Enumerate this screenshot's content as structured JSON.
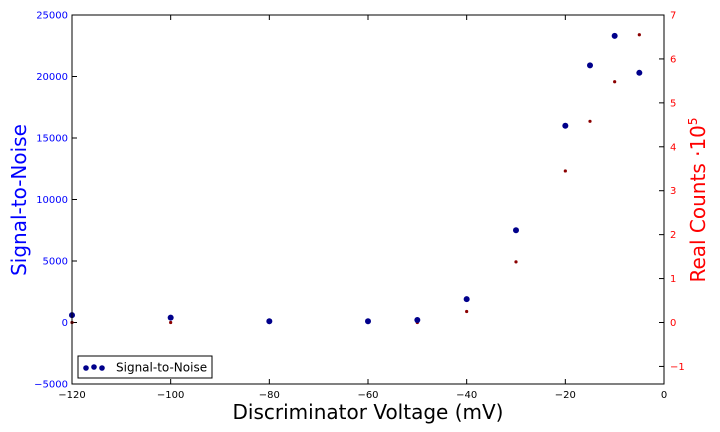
{
  "chart_data": {
    "type": "scatter",
    "xlabel": "Discriminator Voltage (mV)",
    "ylabel": "Signal-to-Noise",
    "y2label_main": "Real Counts ",
    "y2label_base": "10",
    "y2label_exp": "5",
    "y2label_dot": "·",
    "xlim": [
      -120,
      0
    ],
    "ylim": [
      -5000,
      25000
    ],
    "y2lim": [
      -1.4,
      7
    ],
    "xticks": [
      -120,
      -100,
      -80,
      -60,
      -40,
      -20,
      0
    ],
    "xtick_labels": [
      "−120",
      "−100",
      "−80",
      "−60",
      "−40",
      "−20",
      "0"
    ],
    "yticks": [
      -5000,
      0,
      5000,
      10000,
      15000,
      20000,
      25000
    ],
    "ytick_labels": [
      "−5000",
      "0",
      "5000",
      "10000",
      "15000",
      "20000",
      "25000"
    ],
    "y2ticks": [
      -1,
      0,
      1,
      2,
      3,
      4,
      5,
      6,
      7
    ],
    "y2tick_labels": [
      "−1",
      "0",
      "1",
      "2",
      "3",
      "4",
      "5",
      "6",
      "7"
    ],
    "legend": {
      "label": "Signal-to-Noise",
      "location": "lower-left"
    },
    "grid": false,
    "colors": {
      "left_axis": "#0000ff",
      "right_axis": "#ff0000",
      "series_main": "#00008b",
      "series_secondary": "#8b0000"
    },
    "series": [
      {
        "name": "Signal-to-Noise",
        "axis": "left",
        "x": [
          -120,
          -100,
          -80,
          -60,
          -50,
          -40,
          -30,
          -20,
          -15,
          -10,
          -5
        ],
        "y": [
          600,
          400,
          100,
          100,
          200,
          1900,
          7500,
          16000,
          20900,
          23300,
          20300
        ]
      },
      {
        "axis": "right",
        "x": [
          -120,
          -100,
          -80,
          -60,
          -50,
          -40,
          -30,
          -20,
          -15,
          -10,
          -5
        ],
        "y": [
          0,
          0,
          0,
          0,
          0,
          0.25,
          1.38,
          3.45,
          4.58,
          5.48,
          6.55
        ]
      }
    ]
  }
}
